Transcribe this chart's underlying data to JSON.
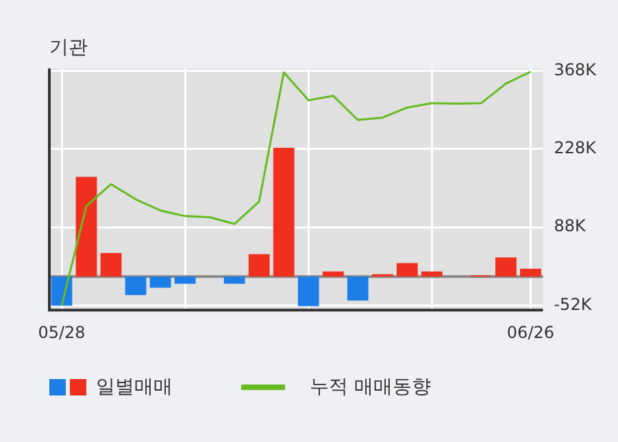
{
  "chart_data": {
    "type": "bar",
    "title": "기관",
    "categories": [
      "05/28",
      null,
      null,
      null,
      null,
      null,
      null,
      null,
      null,
      null,
      null,
      null,
      null,
      null,
      null,
      null,
      null,
      null,
      null,
      "06/26"
    ],
    "series": [
      {
        "name": "일별매매",
        "colors": [
          "#1e7ee8",
          "#f0301e",
          "#f0301e",
          "#1e7ee8",
          "#1e7ee8",
          "#1e7ee8",
          "#f0301e",
          "#1e7ee8",
          "#f0301e",
          "#f0301e",
          "#1e7ee8",
          "#f0301e",
          "#1e7ee8",
          "#f0301e",
          "#f0301e",
          "#f0301e",
          "#f0301e",
          "#f0301e",
          "#f0301e",
          "#f0301e"
        ],
        "values": [
          -52,
          178,
          42,
          -33,
          -20,
          -13,
          0,
          -13,
          40,
          230,
          -53,
          9,
          -43,
          4,
          24,
          9,
          0,
          2,
          34,
          14
        ]
      },
      {
        "name": "누적 매매동향",
        "type": "line",
        "color": "#66bb22",
        "values": [
          -52,
          126,
          165,
          138,
          118,
          108,
          106,
          94,
          134,
          365,
          315,
          323,
          280,
          284,
          302,
          310,
          309,
          310,
          345,
          366
        ]
      }
    ],
    "ylim": [
      -60,
      372
    ],
    "yticks": [
      {
        "value": 368,
        "label": "368K"
      },
      {
        "value": 228,
        "label": "228K"
      },
      {
        "value": 88,
        "label": "88K"
      },
      {
        "value": -52,
        "label": "-52K"
      }
    ],
    "ref_lines": [
      {
        "axis": "y",
        "value": 0,
        "color": "#888888"
      }
    ],
    "grid": true,
    "legend": "bottom",
    "marker": "none"
  }
}
